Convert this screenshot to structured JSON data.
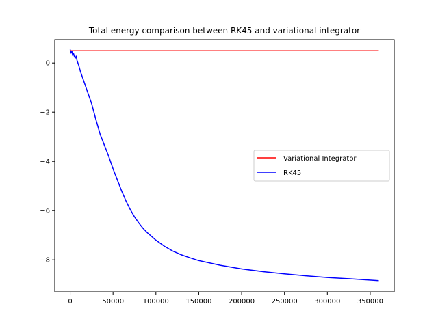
{
  "chart_data": {
    "type": "line",
    "title": "Total energy comparison between RK45 and variational integrator",
    "xlabel": "",
    "ylabel": "",
    "xlim": [
      -18000,
      378000
    ],
    "ylim": [
      -9.3,
      0.95
    ],
    "xticks": [
      0,
      50000,
      100000,
      150000,
      200000,
      250000,
      300000,
      350000
    ],
    "xtick_labels": [
      "0",
      "50000",
      "100000",
      "150000",
      "200000",
      "250000",
      "300000",
      "350000"
    ],
    "yticks": [
      0,
      -2,
      -4,
      -6,
      -8
    ],
    "ytick_labels": [
      "0",
      "−2",
      "−4",
      "−6",
      "−8"
    ],
    "grid": false,
    "legend_position": "center-right",
    "series": [
      {
        "name": "Variational Integrator",
        "color": "#ff0000",
        "x": [
          0,
          360000
        ],
        "y": [
          0.5,
          0.5
        ]
      },
      {
        "name": "RK45",
        "color": "#0000ff",
        "x": [
          0,
          1000,
          2000,
          3000,
          4000,
          5000,
          6000,
          7000,
          8000,
          10000,
          12000,
          15000,
          20000,
          25000,
          30000,
          35000,
          40000,
          45000,
          50000,
          55000,
          60000,
          65000,
          70000,
          75000,
          80000,
          85000,
          90000,
          100000,
          110000,
          120000,
          130000,
          140000,
          150000,
          175000,
          200000,
          225000,
          250000,
          275000,
          300000,
          325000,
          360000
        ],
        "y": [
          0.55,
          0.4,
          0.48,
          0.3,
          0.38,
          0.25,
          0.2,
          0.28,
          0.1,
          -0.1,
          -0.35,
          -0.65,
          -1.15,
          -1.65,
          -2.3,
          -2.9,
          -3.35,
          -3.8,
          -4.3,
          -4.75,
          -5.2,
          -5.6,
          -5.95,
          -6.25,
          -6.5,
          -6.72,
          -6.9,
          -7.2,
          -7.45,
          -7.65,
          -7.8,
          -7.92,
          -8.03,
          -8.22,
          -8.37,
          -8.48,
          -8.57,
          -8.65,
          -8.72,
          -8.77,
          -8.85
        ]
      }
    ]
  }
}
